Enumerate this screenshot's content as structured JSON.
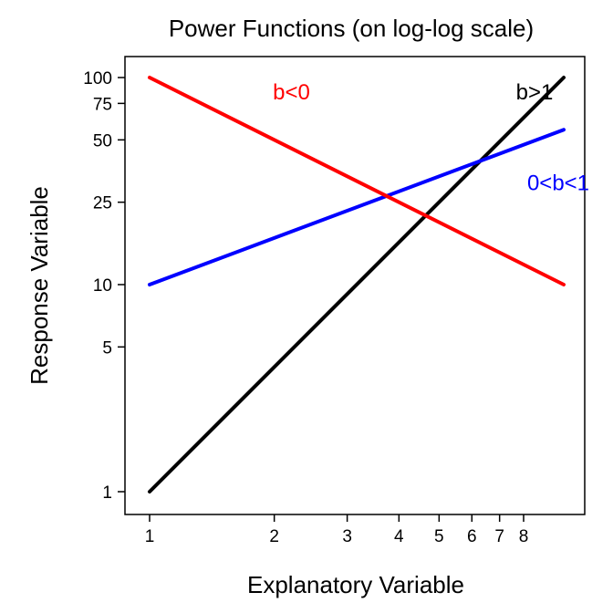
{
  "chart_data": {
    "type": "line",
    "title": "Power Functions (on log-log scale)",
    "xlabel": "Explanatory Variable",
    "ylabel": "Response Variable",
    "x_scale": "log",
    "y_scale": "log",
    "xlim": [
      1,
      10
    ],
    "ylim": [
      1,
      100
    ],
    "x_ticks": [
      1,
      2,
      3,
      4,
      5,
      6,
      7,
      8
    ],
    "y_ticks": [
      1,
      5,
      10,
      25,
      50,
      75,
      100
    ],
    "grid": false,
    "series": [
      {
        "name": "b>1",
        "color": "#000000",
        "x": [
          1,
          10
        ],
        "y": [
          1,
          100
        ]
      },
      {
        "name": "0<b<1",
        "color": "#0000ff",
        "x": [
          1,
          10
        ],
        "y": [
          10,
          56
        ]
      },
      {
        "name": "b<0",
        "color": "#ff0000",
        "x": [
          1,
          10
        ],
        "y": [
          100,
          10
        ]
      }
    ],
    "annotations": [
      {
        "text": "b<0",
        "color": "#ff0000",
        "x": 2.2,
        "y": 85
      },
      {
        "text": "b>1",
        "color": "#000000",
        "x": 8.5,
        "y": 85
      },
      {
        "text": "0<b<1",
        "color": "#0000ff",
        "x": 9.7,
        "y": 31
      }
    ]
  }
}
